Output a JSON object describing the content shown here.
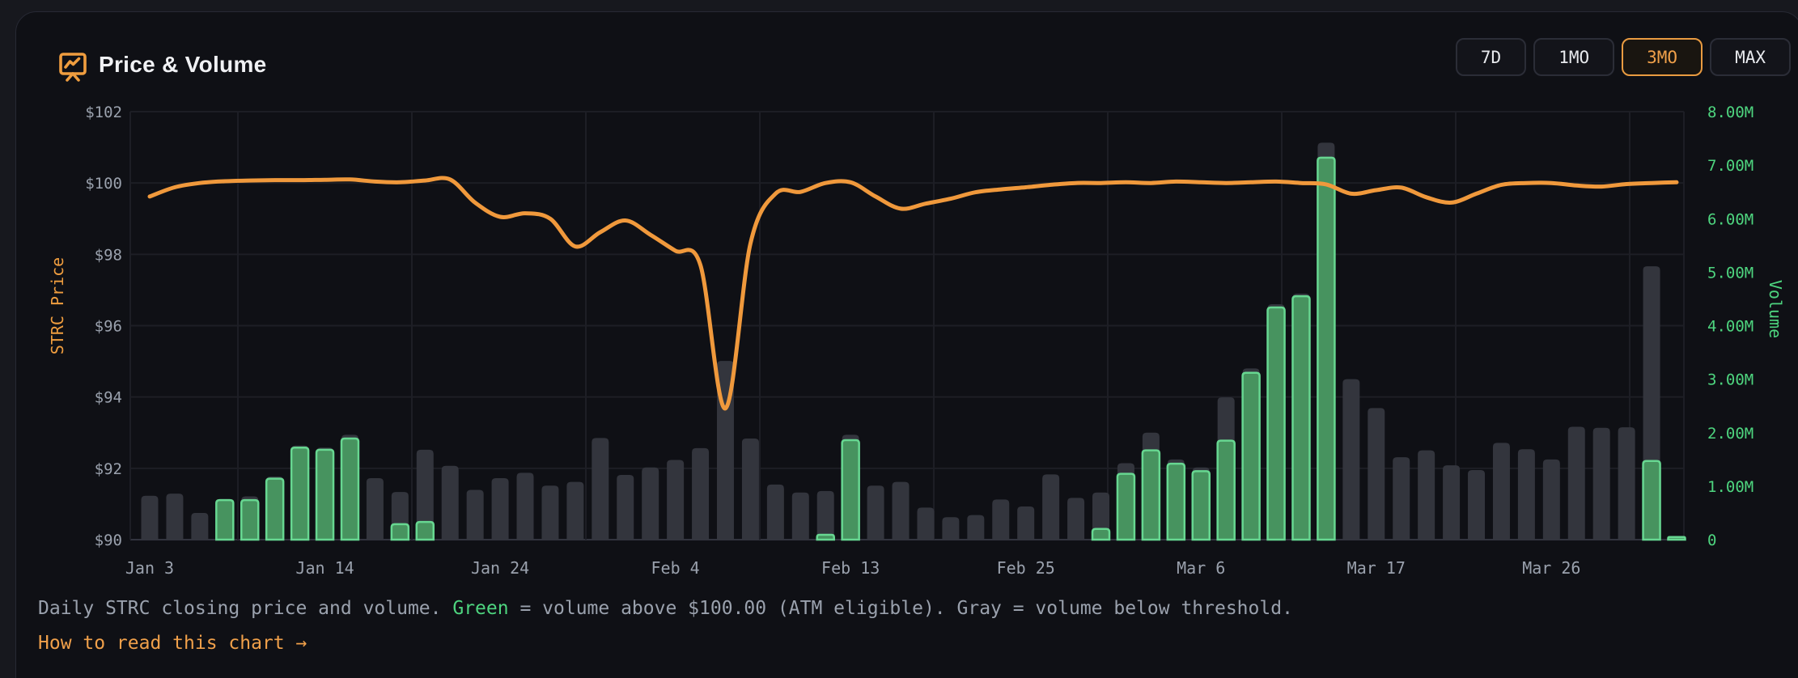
{
  "header": {
    "title": "Price & Volume",
    "icon": "presentation-chart-icon"
  },
  "time_range": {
    "options": [
      {
        "label": "7D",
        "active": false
      },
      {
        "label": "1MO",
        "active": false
      },
      {
        "label": "3MO",
        "active": true
      },
      {
        "label": "MAX",
        "active": false
      }
    ]
  },
  "chart_data": {
    "type": "line+bar",
    "title": "Price & Volume",
    "x_tick_labels": [
      "Jan 3",
      "Jan 14",
      "Jan 24",
      "Feb 4",
      "Feb 13",
      "Feb 25",
      "Mar 6",
      "Mar 17",
      "Mar 26"
    ],
    "x_tick_indices": [
      0,
      7,
      14,
      21,
      28,
      35,
      42,
      49,
      56
    ],
    "price_axis": {
      "label": "STRC Price",
      "min": 90,
      "max": 102,
      "ticks": [
        "$102",
        "$100",
        "$98",
        "$96",
        "$94",
        "$92",
        "$90"
      ]
    },
    "volume_axis": {
      "label": "Volume",
      "min": 0,
      "max": 8000000,
      "ticks": [
        "8.00M",
        "7.00M",
        "6.00M",
        "5.00M",
        "4.00M",
        "3.00M",
        "2.00M",
        "1.00M",
        "0"
      ]
    },
    "series": [
      {
        "name": "close_price",
        "type": "line",
        "color": "#f0993c",
        "unit": "USD",
        "values": [
          99.62,
          99.88,
          100.0,
          100.05,
          100.07,
          100.08,
          100.08,
          100.09,
          100.1,
          100.04,
          100.02,
          100.07,
          100.1,
          99.45,
          99.05,
          99.15,
          99.0,
          98.22,
          98.62,
          98.95,
          98.55,
          98.1,
          97.7,
          93.68,
          98.3,
          99.7,
          99.75,
          100.0,
          100.02,
          99.62,
          99.28,
          99.42,
          99.56,
          99.74,
          99.82,
          99.88,
          99.95,
          100.0,
          100.0,
          100.02,
          100.0,
          100.04,
          100.02,
          100.0,
          100.02,
          100.04,
          100.0,
          99.96,
          99.7,
          99.8,
          99.87,
          99.6,
          99.45,
          99.7,
          99.95,
          100.0,
          100.0,
          99.93,
          99.9,
          99.97,
          100.0,
          100.02
        ]
      },
      {
        "name": "total_volume",
        "type": "bar",
        "color": "#33353d",
        "unit": "millions",
        "values": [
          0.82,
          0.86,
          0.5,
          0.76,
          0.81,
          1.18,
          1.76,
          1.72,
          1.96,
          1.15,
          0.89,
          1.68,
          1.38,
          0.93,
          1.15,
          1.25,
          1.01,
          1.08,
          1.9,
          1.21,
          1.35,
          1.49,
          1.71,
          3.34,
          1.89,
          1.03,
          0.88,
          0.91,
          1.96,
          1.01,
          1.08,
          0.6,
          0.42,
          0.46,
          0.75,
          0.62,
          1.22,
          0.78,
          0.88,
          1.43,
          2.0,
          1.5,
          1.35,
          2.66,
          3.2,
          4.4,
          4.6,
          7.42,
          3.0,
          2.46,
          1.54,
          1.67,
          1.39,
          1.3,
          1.81,
          1.69,
          1.5,
          2.11,
          2.09,
          2.1,
          5.11,
          0.06
        ]
      },
      {
        "name": "atm_eligible_volume",
        "type": "bar",
        "color": "#47935f",
        "unit": "millions",
        "values": [
          0,
          0,
          0,
          0.74,
          0.74,
          1.14,
          1.72,
          1.68,
          1.89,
          0,
          0.29,
          0.33,
          0,
          0,
          0,
          0,
          0,
          0,
          0,
          0,
          0,
          0,
          0,
          0,
          0,
          0,
          0,
          0.09,
          1.86,
          0,
          0,
          0,
          0,
          0,
          0,
          0,
          0,
          0,
          0.2,
          1.23,
          1.67,
          1.42,
          1.28,
          1.85,
          3.12,
          4.34,
          4.55,
          7.14,
          0,
          0,
          0,
          0,
          0,
          0,
          0,
          0,
          0,
          0,
          0,
          0,
          1.47,
          0.05
        ]
      }
    ],
    "legend_position": "none",
    "grid": true,
    "threshold": "$100.00"
  },
  "caption": {
    "part1": "Daily STRC closing price and volume. ",
    "green_word": "Green",
    "part2": " = volume above $100.00 (ATM eligible). Gray = volume below threshold."
  },
  "link": {
    "label": "How to read this chart →"
  },
  "colors": {
    "accent_orange": "#f0993c",
    "green_bar": "#47935f",
    "green_bar_border": "#67d791",
    "green_text": "#4ed57f",
    "gray_bar": "#33353d",
    "card_bg": "#0f1015",
    "page_bg": "#17181e",
    "muted_text": "#9aa1ad"
  }
}
